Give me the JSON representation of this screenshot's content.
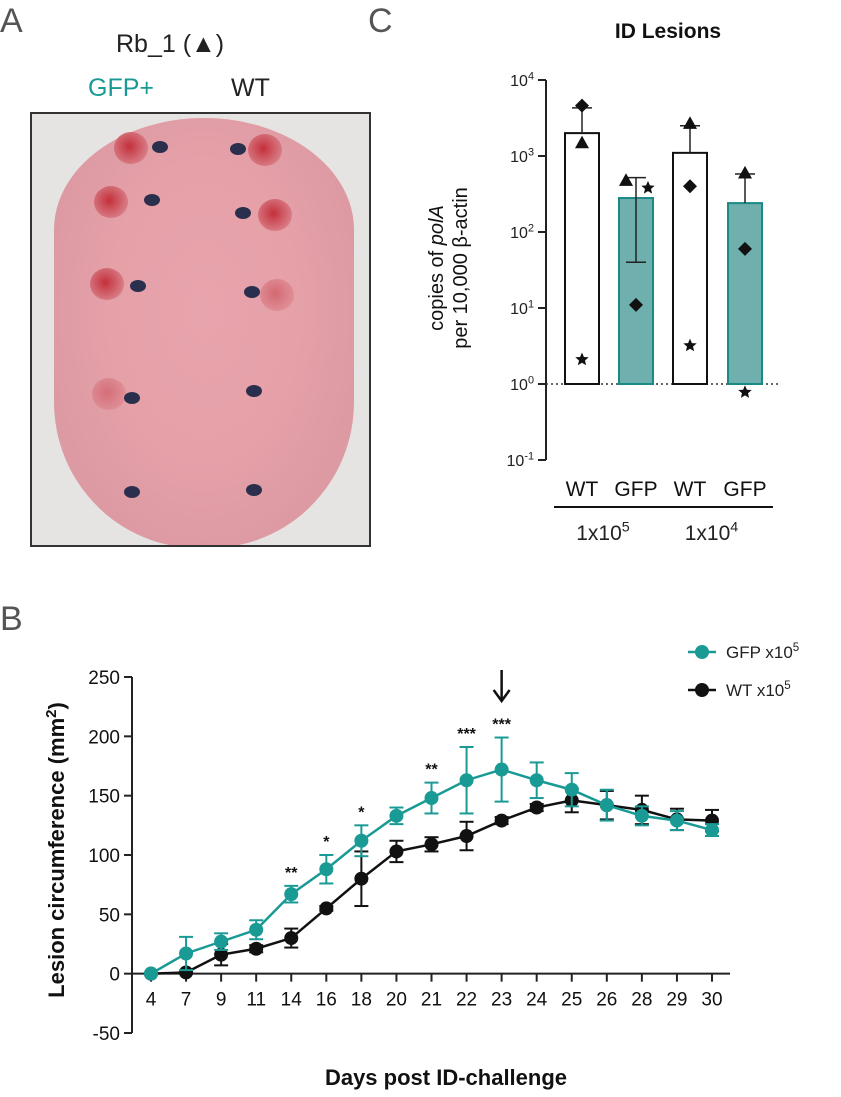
{
  "panel_a": {
    "letter": "A",
    "strain_label": "Rb_1 (▲)",
    "gfp_label": "GFP+",
    "wt_label": "WT",
    "gfp_color": "#1a9a94"
  },
  "panel_b": {
    "letter": "B"
  },
  "panel_c": {
    "letter": "C"
  },
  "chart_data": [
    {
      "id": "C",
      "type": "bar",
      "title": "ID Lesions",
      "ylabel_line1_prefix": "copies of ",
      "ylabel_line1_italic": "polA",
      "ylabel_line2": "per 10,000 β-actin",
      "yscale": "log",
      "ylim": [
        0.1,
        10000
      ],
      "yticks": [
        {
          "value": 0.1,
          "base": "10",
          "exp": "-1"
        },
        {
          "value": 1,
          "base": "10",
          "exp": "0"
        },
        {
          "value": 10,
          "base": "10",
          "exp": "1"
        },
        {
          "value": 100,
          "base": "10",
          "exp": "2"
        },
        {
          "value": 1000,
          "base": "10",
          "exp": "3"
        },
        {
          "value": 10000,
          "base": "10",
          "exp": "4"
        }
      ],
      "baseline": 1,
      "categories": [
        "WT",
        "GFP",
        "WT",
        "GFP"
      ],
      "groups": [
        {
          "base": "1x10",
          "exp": "5",
          "from": 0,
          "to": 1
        },
        {
          "base": "1x10",
          "exp": "4",
          "from": 2,
          "to": 3
        }
      ],
      "values": [
        2000,
        280,
        1100,
        240
      ],
      "err_high": [
        4300,
        520,
        2500,
        580
      ],
      "err_low": [
        null,
        40,
        null,
        null
      ],
      "fills": [
        "#ffffff",
        "#6fafae",
        "#ffffff",
        "#6fafae"
      ],
      "points": [
        [
          {
            "shape": "diamond",
            "value": 4600
          },
          {
            "shape": "triangle",
            "value": 1500
          },
          {
            "shape": "star",
            "value": 2.1
          }
        ],
        [
          {
            "shape": "triangle",
            "value": 480
          },
          {
            "shape": "star",
            "value": 380
          },
          {
            "shape": "diamond",
            "value": 11
          }
        ],
        [
          {
            "shape": "triangle",
            "value": 2700
          },
          {
            "shape": "diamond",
            "value": 400
          },
          {
            "shape": "star",
            "value": 3.2
          }
        ],
        [
          {
            "shape": "triangle",
            "value": 600
          },
          {
            "shape": "diamond",
            "value": 60
          },
          {
            "shape": "star",
            "value": 0.78
          }
        ]
      ]
    },
    {
      "id": "B",
      "type": "line",
      "xlabel": "Days post ID-challenge",
      "ylabel_text": "Lesion circumference (mm",
      "ylabel_sup": "2",
      "ylabel_end": ")",
      "ylim": [
        -50,
        250
      ],
      "yticks": [
        -50,
        0,
        50,
        100,
        150,
        200,
        250
      ],
      "categories": [
        "4",
        "7",
        "9",
        "11",
        "14",
        "16",
        "18",
        "20",
        "21",
        "22",
        "23",
        "24",
        "25",
        "26",
        "28",
        "29",
        "30"
      ],
      "series": [
        {
          "name": "GFP x10",
          "sup": "5",
          "color": "#1a9a94",
          "values": [
            0,
            17,
            27,
            37,
            67,
            88,
            112,
            133,
            148,
            163,
            172,
            163,
            155,
            142,
            133,
            129,
            121
          ],
          "errors": [
            0,
            14,
            7,
            8,
            7,
            12,
            13,
            7,
            13,
            28,
            27,
            15,
            14,
            13,
            8,
            8,
            5
          ]
        },
        {
          "name": "WT x10",
          "sup": "5",
          "color": "#111111",
          "values": [
            0,
            1,
            16,
            21,
            30,
            55,
            80,
            103,
            109,
            116,
            129,
            140,
            146,
            142,
            138,
            130,
            129
          ],
          "errors": [
            0,
            1,
            9,
            3,
            8,
            2,
            23,
            9,
            6,
            12,
            3,
            3,
            10,
            12,
            12,
            9,
            9
          ]
        }
      ],
      "significance": [
        {
          "x": "14",
          "label": "**"
        },
        {
          "x": "16",
          "label": "*"
        },
        {
          "x": "18",
          "label": "*"
        },
        {
          "x": "21",
          "label": "**"
        },
        {
          "x": "22",
          "label": "***"
        },
        {
          "x": "23",
          "label": "***"
        }
      ],
      "arrow_at": "23"
    }
  ]
}
